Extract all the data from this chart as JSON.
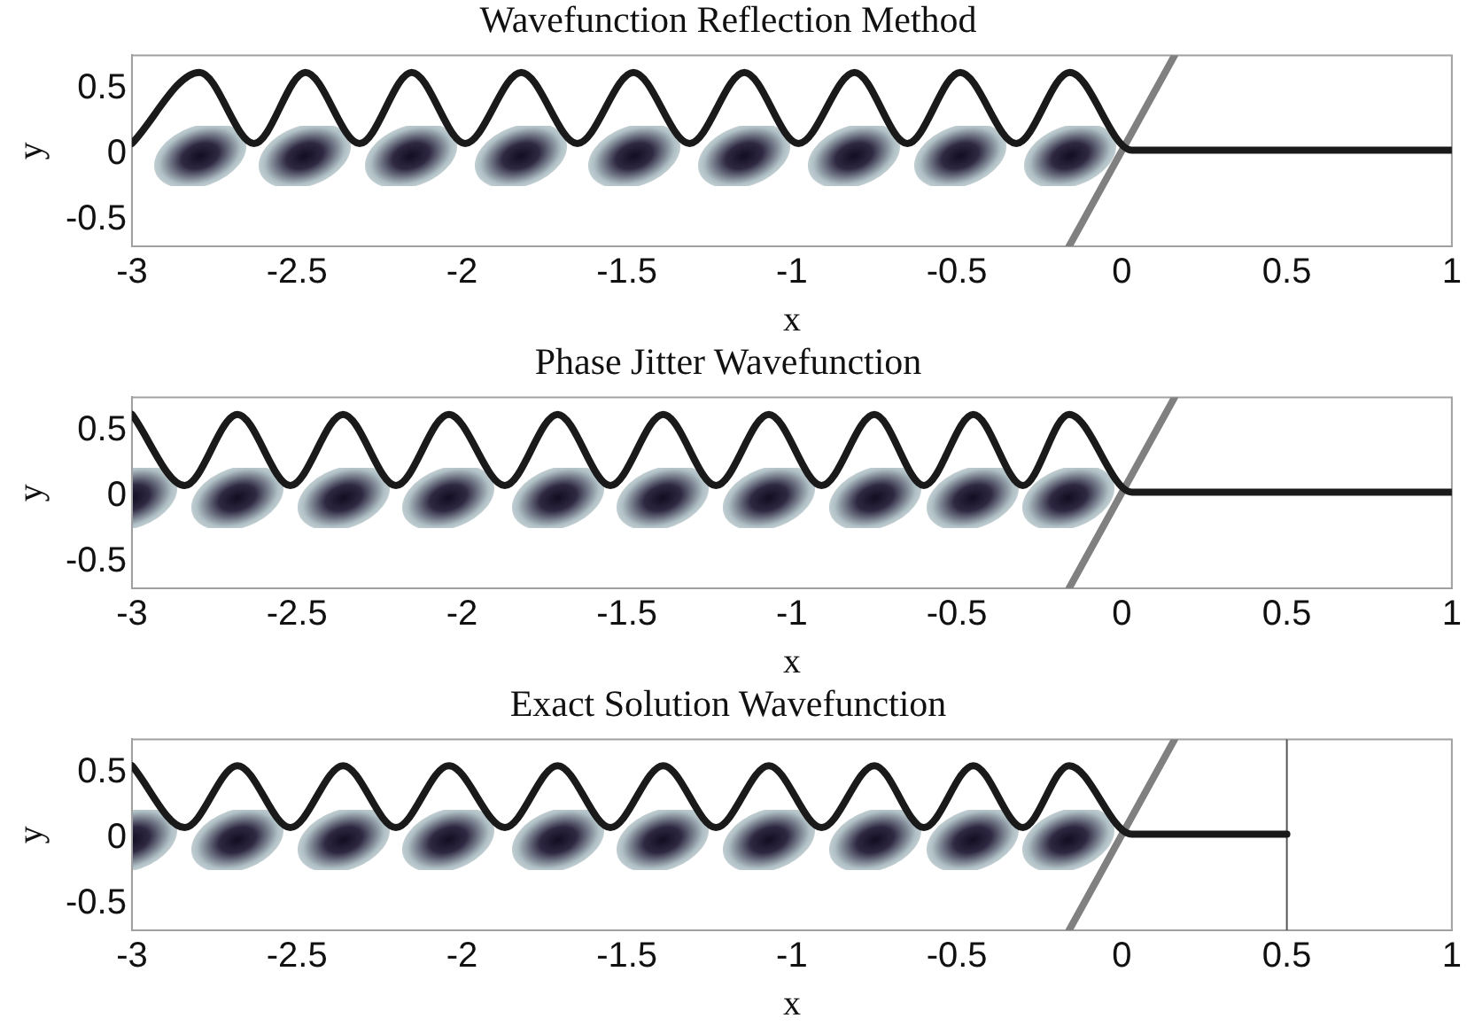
{
  "chart_data": [
    {
      "type": "line",
      "title": "Wavefunction Reflection Method",
      "xlabel": "x",
      "ylabel": "y",
      "xlim": [
        -3,
        1
      ],
      "ylim": [
        -0.7,
        0.75
      ],
      "xticks": [
        -3,
        -2.5,
        -2,
        -1.5,
        -1,
        -0.5,
        0,
        0.5,
        1
      ],
      "yticks": [
        -0.5,
        0,
        0.5
      ],
      "grid": false,
      "legend": false,
      "series": [
        {
          "color": "#1a1a1a",
          "x": [
            -3,
            -2.795,
            -2.63,
            -2.474,
            -2.31,
            -2.152,
            -1.99,
            -1.82,
            -1.65,
            -1.48,
            -1.31,
            -1.144,
            -0.98,
            -0.81,
            -0.65,
            -0.49,
            -0.32,
            -0.158,
            0.03,
            1
          ],
          "values": [
            0.08,
            0.62,
            0.08,
            0.62,
            0.08,
            0.62,
            0.08,
            0.62,
            0.08,
            0.62,
            0.08,
            0.62,
            0.08,
            0.62,
            0.08,
            0.62,
            0.08,
            0.62,
            0.03,
            0.03
          ]
        },
        {
          "color": "#808080",
          "x": [
            -0.16,
            0.16
          ],
          "values": [
            -0.7,
            0.75
          ]
        }
      ]
    },
    {
      "type": "line",
      "title": "Phase Jitter Wavefunction",
      "xlabel": "x",
      "ylabel": "y",
      "xlim": [
        -3,
        1
      ],
      "ylim": [
        -0.7,
        0.75
      ],
      "xticks": [
        -3,
        -2.5,
        -2,
        -1.5,
        -1,
        -0.5,
        0,
        0.5,
        1
      ],
      "yticks": [
        -0.5,
        0,
        0.5
      ],
      "grid": false,
      "legend": false,
      "series": [
        {
          "color": "#1a1a1a",
          "x": [
            -3,
            -2.84,
            -2.68,
            -2.52,
            -2.36,
            -2.2,
            -2.04,
            -1.87,
            -1.71,
            -1.55,
            -1.39,
            -1.23,
            -1.07,
            -0.91,
            -0.75,
            -0.6,
            -0.45,
            -0.3,
            -0.16,
            0.03,
            1
          ],
          "values": [
            0.62,
            0.08,
            0.62,
            0.08,
            0.62,
            0.08,
            0.62,
            0.08,
            0.62,
            0.08,
            0.62,
            0.08,
            0.62,
            0.08,
            0.62,
            0.08,
            0.62,
            0.08,
            0.62,
            0.03,
            0.03
          ]
        },
        {
          "color": "#808080",
          "x": [
            -0.16,
            0.16
          ],
          "values": [
            -0.7,
            0.75
          ]
        }
      ]
    },
    {
      "type": "line",
      "title": "Exact Solution Wavefunction",
      "xlabel": "x",
      "ylabel": "y",
      "xlim": [
        -3,
        1
      ],
      "ylim": [
        -0.7,
        0.75
      ],
      "xticks": [
        -3,
        -2.5,
        -2,
        -1.5,
        -1,
        -0.5,
        0,
        0.5,
        1
      ],
      "yticks": [
        -0.5,
        0,
        0.5
      ],
      "grid": false,
      "legend": false,
      "series": [
        {
          "color": "#1a1a1a",
          "x": [
            -3,
            -2.84,
            -2.68,
            -2.52,
            -2.36,
            -2.2,
            -2.04,
            -1.87,
            -1.71,
            -1.55,
            -1.39,
            -1.23,
            -1.07,
            -0.91,
            -0.75,
            -0.6,
            -0.45,
            -0.3,
            -0.16,
            0.03,
            0.5
          ],
          "values": [
            0.55,
            0.08,
            0.55,
            0.08,
            0.55,
            0.08,
            0.55,
            0.08,
            0.55,
            0.08,
            0.55,
            0.08,
            0.55,
            0.08,
            0.55,
            0.08,
            0.55,
            0.08,
            0.55,
            0.03,
            0.03
          ]
        },
        {
          "color": "#808080",
          "x": [
            -0.16,
            0.16
          ],
          "values": [
            -0.7,
            0.75
          ]
        }
      ],
      "ref_lines": [
        {
          "axis": "x",
          "value": 0.5,
          "color": "#555555"
        }
      ]
    }
  ]
}
